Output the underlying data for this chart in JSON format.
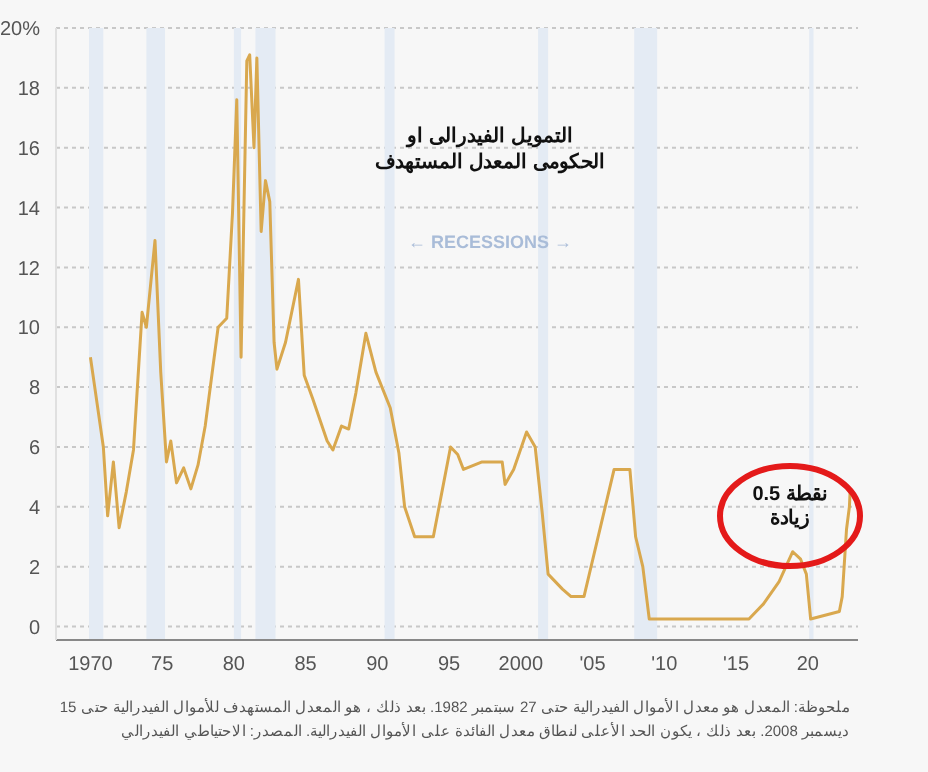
{
  "chart_data": {
    "type": "line",
    "xlim": [
      1967.6,
      2023.5
    ],
    "xticks": [
      1970,
      {
        "value": 1975,
        "label": "75"
      },
      {
        "value": 1980,
        "label": "80"
      },
      {
        "value": 1985,
        "label": "85"
      },
      {
        "value": 1990,
        "label": "90"
      },
      {
        "value": 1995,
        "label": "95"
      },
      2000,
      {
        "value": 2005,
        "label": "'05"
      },
      {
        "value": 2010,
        "label": "'10"
      },
      {
        "value": 2015,
        "label": "'15"
      },
      {
        "value": 2020,
        "label": "20"
      }
    ],
    "ylim": [
      -0.45,
      20
    ],
    "yticks": [
      0,
      2,
      4,
      6,
      8,
      10,
      12,
      14,
      16,
      18,
      {
        "value": 20,
        "label": "20%"
      }
    ],
    "grid": "y",
    "line_style": "solid",
    "series": [
      {
        "color": "#d9a84e",
        "x": [
          1970.0,
          1970.3,
          1970.9,
          1971.2,
          1971.6,
          1972.0,
          1972.5,
          1973.0,
          1973.6,
          1973.9,
          1974.5,
          1974.9,
          1975.3,
          1975.6,
          1976.0,
          1976.5,
          1977.0,
          1977.5,
          1978.0,
          1978.9,
          1979.5,
          1979.9,
          1980.2,
          1980.5,
          1980.9,
          1981.1,
          1981.4,
          1981.6,
          1981.9,
          1982.2,
          1982.5,
          1982.8,
          1983.0,
          1983.6,
          1984.5,
          1984.9,
          1985.5,
          1986.5,
          1986.9,
          1987.5,
          1988.0,
          1988.5,
          1989.2,
          1989.9,
          1990.9,
          1991.5,
          1991.9,
          1992.6,
          1993.9,
          1994.5,
          1995.1,
          1995.6,
          1996.0,
          1997.3,
          1998.7,
          1998.9,
          1999.5,
          2000.4,
          2001.0,
          2001.5,
          2001.9,
          2002.9,
          2003.5,
          2004.4,
          2006.5,
          2007.6,
          2008.0,
          2008.5,
          2008.95,
          2015.9,
          2016.9,
          2018.0,
          2018.95,
          2019.5,
          2019.9,
          2020.2,
          2022.2,
          2022.4,
          2022.5,
          2022.7,
          2022.9,
          2022.95
        ],
        "values": [
          9.0,
          8.0,
          6.0,
          3.7,
          5.5,
          3.3,
          4.5,
          5.9,
          10.5,
          10.0,
          12.9,
          8.5,
          5.5,
          6.2,
          4.8,
          5.3,
          4.6,
          5.4,
          6.7,
          10.0,
          10.3,
          13.8,
          17.6,
          9.0,
          18.9,
          19.1,
          16.0,
          19.0,
          13.2,
          14.9,
          14.2,
          9.5,
          8.6,
          9.5,
          11.6,
          8.4,
          7.6,
          6.2,
          5.9,
          6.7,
          6.6,
          7.8,
          9.8,
          8.5,
          7.3,
          5.8,
          4.0,
          3.0,
          3.0,
          4.5,
          6.0,
          5.75,
          5.25,
          5.5,
          5.5,
          4.75,
          5.25,
          6.5,
          6.0,
          3.75,
          1.75,
          1.25,
          1.0,
          1.0,
          5.25,
          5.25,
          3.0,
          2.0,
          0.25,
          0.25,
          0.75,
          1.5,
          2.5,
          2.25,
          1.75,
          0.25,
          0.5,
          1.0,
          1.75,
          3.25,
          4.0,
          4.5
        ]
      }
    ],
    "bands": [
      {
        "axis": "x",
        "from": 1969.9,
        "to": 1970.9,
        "color": "#e4ebf4"
      },
      {
        "axis": "x",
        "from": 1973.9,
        "to": 1975.2,
        "color": "#e4ebf4"
      },
      {
        "axis": "x",
        "from": 1980.0,
        "to": 1980.5,
        "color": "#e4ebf4"
      },
      {
        "axis": "x",
        "from": 1981.5,
        "to": 1982.9,
        "color": "#e4ebf4"
      },
      {
        "axis": "x",
        "from": 1990.5,
        "to": 1991.2,
        "color": "#e4ebf4"
      },
      {
        "axis": "x",
        "from": 2001.2,
        "to": 2001.9,
        "color": "#e4ebf4"
      },
      {
        "axis": "x",
        "from": 2007.9,
        "to": 2009.5,
        "color": "#e4ebf4"
      },
      {
        "axis": "x",
        "from": 2020.1,
        "to": 2020.4,
        "color": "#e4ebf4"
      }
    ],
    "annotations": [
      "التمويل الفيدرالى او الحكومى المعدل المستهدف",
      "← RECESSIONS →",
      {
        "text": "نقطة 0.5 زيادة",
        "x": 2022.95,
        "y": 4.5
      },
      "ملحوظة: المعدل هو معدل الأموال الفيدرالية حتى 27 سبتمبر 1982. بعد ذلك ، هو المعدل المستهدف للأموال الفيدرالية حتى 15 ديسمبر 2008. بعد ذلك ، يكون الحد الأعلى لنطاق معدل الفائدة على الأموال الفيدرالية.   المصدر: الاحتياطي الفيدرالي"
    ]
  }
}
